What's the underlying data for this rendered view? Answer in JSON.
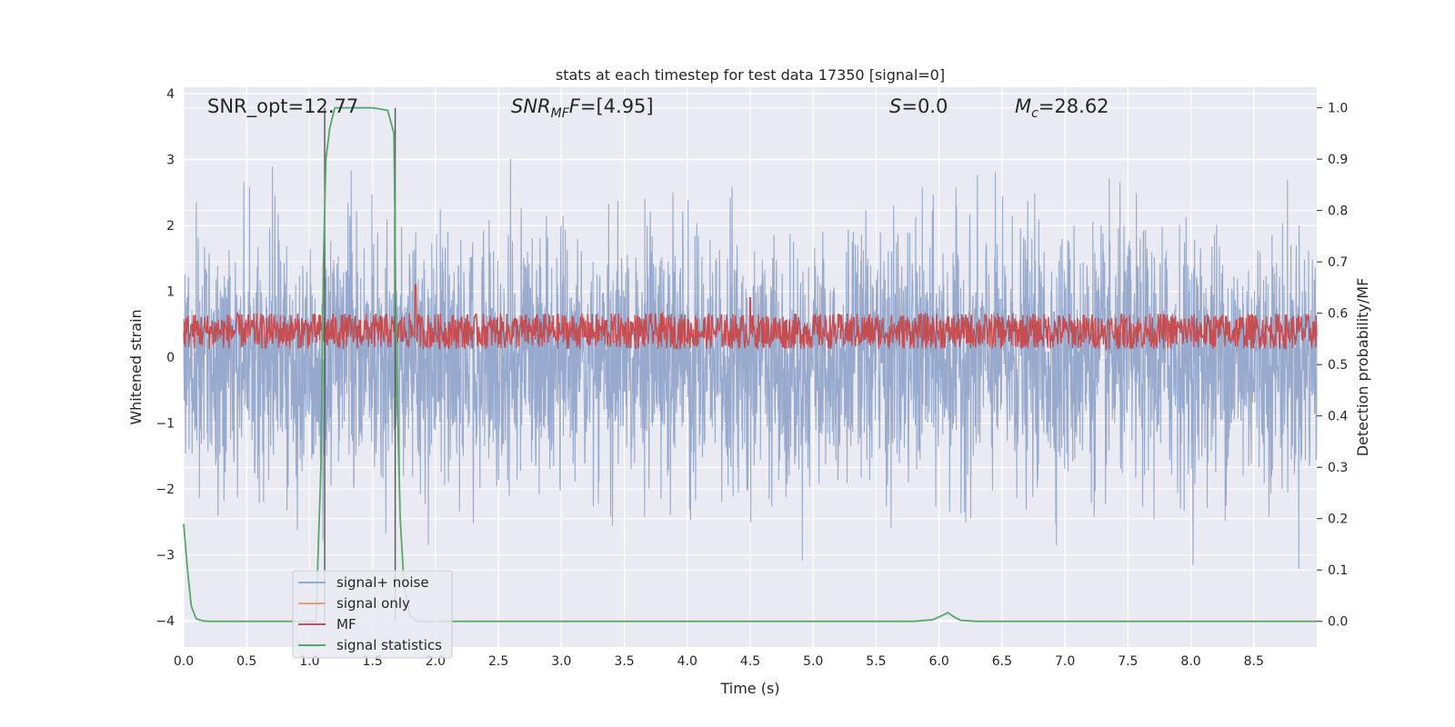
{
  "chart_data": {
    "type": "line",
    "title": "stats at each timestep for test data 17350 [signal=0]",
    "xlabel": "Time (s)",
    "ylabel": "Whitened strain",
    "ylabel_right": "Detection probability/MF",
    "xlim": [
      0.0,
      9.0
    ],
    "ylim": [
      -4.4,
      4.1
    ],
    "ylim_right": [
      -0.05,
      1.04
    ],
    "xticks": [
      "0.0",
      "0.5",
      "1.0",
      "1.5",
      "2.0",
      "2.5",
      "3.0",
      "3.5",
      "4.0",
      "4.5",
      "5.0",
      "5.5",
      "6.0",
      "6.5",
      "7.0",
      "7.5",
      "8.0",
      "8.5"
    ],
    "xtick_values": [
      0.0,
      0.5,
      1.0,
      1.5,
      2.0,
      2.5,
      3.0,
      3.5,
      4.0,
      4.5,
      5.0,
      5.5,
      6.0,
      6.5,
      7.0,
      7.5,
      8.0,
      8.5
    ],
    "yticks": [
      "4",
      "3",
      "2",
      "1",
      "0",
      "−1",
      "−2",
      "−3",
      "−4"
    ],
    "ytick_values": [
      4,
      3,
      2,
      1,
      0,
      -1,
      -2,
      -3,
      -4
    ],
    "yticks_right": [
      "1.0",
      "0.9",
      "0.8",
      "0.7",
      "0.6",
      "0.5",
      "0.4",
      "0.3",
      "0.2",
      "0.1",
      "0.0"
    ],
    "ytick_values_right": [
      1.0,
      0.9,
      0.8,
      0.7,
      0.6,
      0.5,
      0.4,
      0.3,
      0.2,
      0.1,
      0.0
    ],
    "grid": true,
    "legend_position": "lower-left",
    "colors": {
      "background": "#eaeaf2",
      "grid": "#ffffff",
      "signal_noise": "#97a9cd",
      "signal_only": "#ee9a7c",
      "mf": "#c44e52",
      "signal_statistics": "#55a868",
      "vline": "#555555"
    },
    "annotations": {
      "snr_opt": "SNR_opt=12.77",
      "snr_mf_base": "SNR",
      "snr_mf_sub": "MF",
      "snr_mf_value": "=[4.95]",
      "s_base": "S",
      "s_value": "=0.0",
      "mc_base": "M",
      "mc_sub": "c",
      "mc_value": "=28.62"
    },
    "vertical_lines_x": [
      1.12,
      1.68
    ],
    "series": [
      {
        "name": "signal+ noise",
        "axis": "left",
        "description_stats": {
          "t_start": 0.0,
          "t_end": 9.0,
          "center": 0.0,
          "typical_amplitude": 1.6,
          "max": 3.65,
          "min": -4.0
        }
      },
      {
        "name": "signal only",
        "axis": "left",
        "x": [],
        "y": []
      },
      {
        "name": "MF",
        "axis": "right",
        "band_low": 0.53,
        "band_high": 0.6,
        "peaks": [
          {
            "x": 1.84,
            "y": 0.655
          },
          {
            "x": 4.5,
            "y": 0.63
          }
        ]
      },
      {
        "name": "signal statistics",
        "axis": "right",
        "x": [
          0.0,
          0.03,
          0.06,
          0.1,
          0.15,
          0.2,
          0.5,
          1.0,
          1.05,
          1.09,
          1.11,
          1.13,
          1.16,
          1.2,
          1.5,
          1.62,
          1.67,
          1.69,
          1.72,
          1.75,
          1.8,
          1.85,
          2.0,
          3.0,
          4.0,
          5.0,
          5.8,
          5.95,
          6.03,
          6.07,
          6.11,
          6.17,
          6.3,
          7.0,
          8.0,
          9.0
        ],
        "y": [
          0.19,
          0.1,
          0.03,
          0.005,
          0.001,
          0.0,
          0.0,
          0.0,
          0.0,
          0.3,
          0.7,
          0.9,
          0.96,
          1.0,
          1.0,
          0.995,
          0.95,
          0.5,
          0.2,
          0.07,
          0.01,
          0.0,
          0.0,
          0.0,
          0.0,
          0.0,
          0.0,
          0.003,
          0.012,
          0.017,
          0.01,
          0.002,
          0.0,
          0.0,
          0.0,
          0.0
        ]
      }
    ]
  }
}
